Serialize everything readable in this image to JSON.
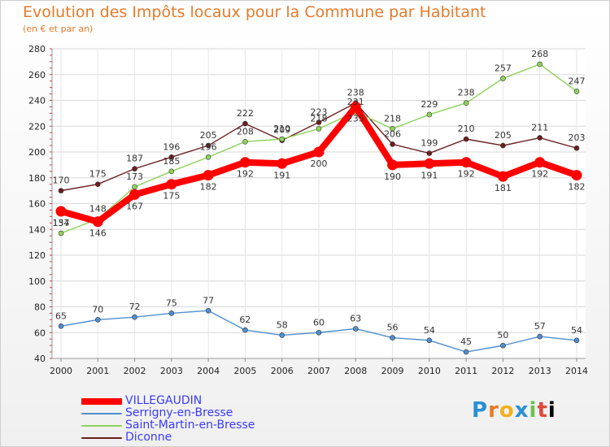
{
  "header": {
    "title": "Evolution des Impôts locaux pour la Commune par Habitant",
    "subtitle": "(en € et par an)"
  },
  "logo": {
    "text": "Proxiti",
    "letters": [
      "P",
      "r",
      "o",
      "x",
      "i",
      "t",
      "i"
    ]
  },
  "chart_data": {
    "type": "line",
    "title": "Evolution des Impôts locaux pour la Commune par Habitant",
    "subtitle": "(en € et par an)",
    "xlabel": "",
    "ylabel": "",
    "ylim": [
      40,
      280
    ],
    "yticks": [
      40,
      60,
      80,
      100,
      120,
      140,
      160,
      180,
      200,
      220,
      240,
      260,
      280
    ],
    "grid": true,
    "legend_position": "bottom-left",
    "categories": [
      "2000",
      "2001",
      "2002",
      "2003",
      "2004",
      "2005",
      "2006",
      "2007",
      "2008",
      "2009",
      "2010",
      "2011",
      "2012",
      "2013",
      "2014"
    ],
    "series": [
      {
        "name": "Diconne",
        "color": "#6b1f1f",
        "values": [
          170,
          175,
          187,
          196,
          205,
          222,
          209,
          223,
          238,
          206,
          199,
          210,
          205,
          211,
          203
        ]
      },
      {
        "name": "Saint-Martin-en-Bresse",
        "color": "#8ed35a",
        "values": [
          137,
          148,
          173,
          185,
          196,
          208,
          210,
          218,
          231,
          218,
          229,
          238,
          257,
          268,
          247
        ]
      },
      {
        "name": "Serrigny-en-Bresse",
        "color": "#4f8fd0",
        "values": [
          65,
          70,
          72,
          75,
          77,
          62,
          58,
          60,
          63,
          56,
          54,
          45,
          50,
          57,
          54
        ]
      },
      {
        "name": "VILLEGAUDIN",
        "color": "#ff0000",
        "values": [
          154,
          146,
          167,
          175,
          182,
          192,
          191,
          200,
          235,
          190,
          191,
          192,
          181,
          192,
          182
        ]
      }
    ],
    "legend_order": [
      "VILLEGAUDIN",
      "Serrigny-en-Bresse",
      "Saint-Martin-en-Bresse",
      "Diconne"
    ]
  }
}
